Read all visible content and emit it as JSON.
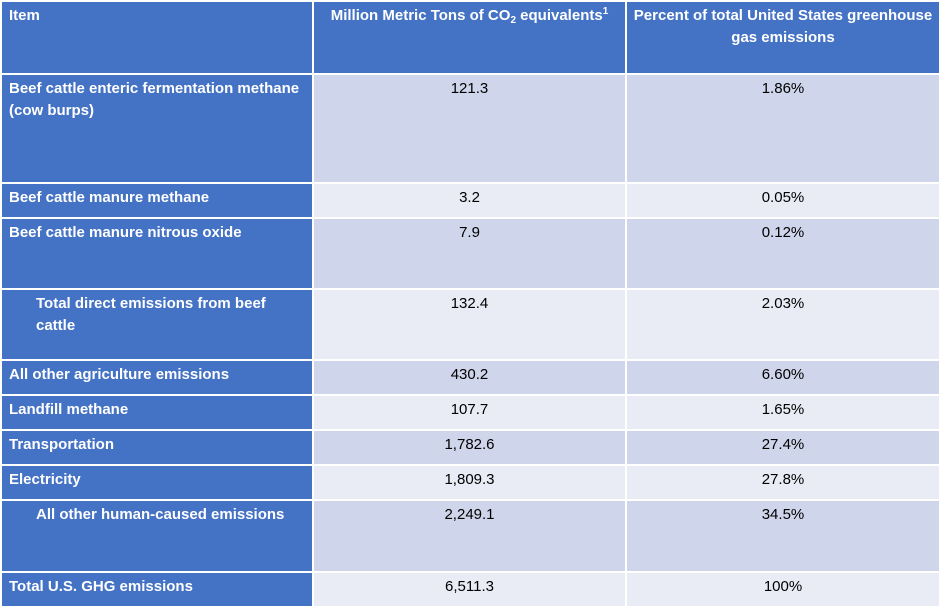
{
  "table": {
    "headers": {
      "item": "Item",
      "mmt_prefix": "Million Metric Tons of CO",
      "mmt_sub": "2",
      "mmt_suffix": " equivalents",
      "mmt_footnote": "1",
      "pct": "Percent of total United States greenhouse gas emissions"
    },
    "rows": [
      {
        "item": "Beef cattle enteric fermentation methane (cow burps)",
        "mmt": "121.3",
        "pct": "1.86%"
      },
      {
        "item": "Beef cattle manure methane",
        "mmt": "3.2",
        "pct": "0.05%"
      },
      {
        "item": "Beef cattle manure nitrous oxide",
        "mmt": "7.9",
        "pct": "0.12%"
      },
      {
        "item": "Total direct emissions from beef cattle",
        "mmt": "132.4",
        "pct": "2.03%"
      },
      {
        "item": "All other agriculture emissions",
        "mmt": "430.2",
        "pct": "6.60%"
      },
      {
        "item": "Landfill methane",
        "mmt": "107.7",
        "pct": "1.65%"
      },
      {
        "item": "Transportation",
        "mmt": "1,782.6",
        "pct": "27.4%"
      },
      {
        "item": "Electricity",
        "mmt": "1,809.3",
        "pct": "27.8%"
      },
      {
        "item": "All other human-caused emissions",
        "mmt": "2,249.1",
        "pct": "34.5%"
      },
      {
        "item": "Total U.S. GHG emissions",
        "mmt": "6,511.3",
        "pct": "100%"
      }
    ]
  }
}
